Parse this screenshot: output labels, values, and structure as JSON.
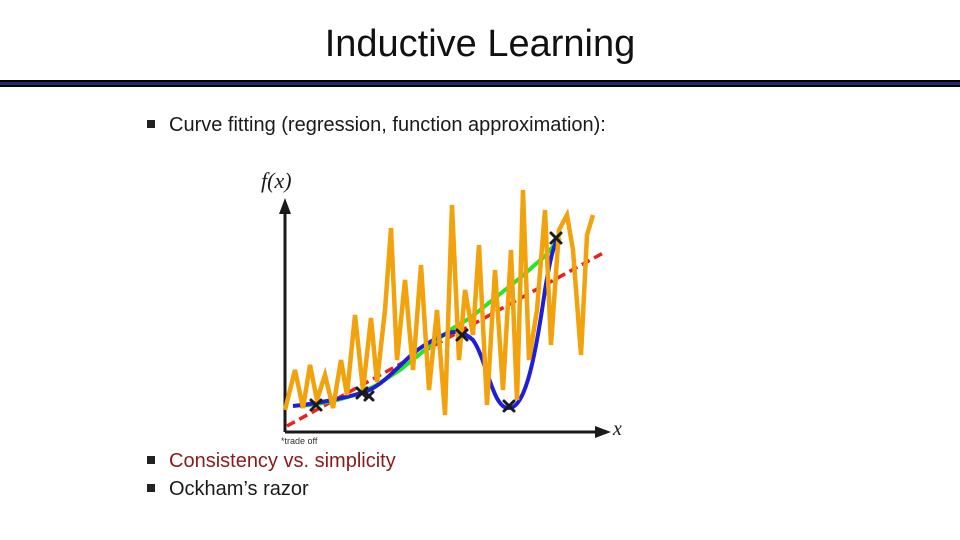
{
  "slide": {
    "title": "Inductive Learning",
    "bullets": [
      {
        "text": "Curve fitting (regression, function approximation):"
      },
      {
        "text": "Consistency vs. simplicity"
      },
      {
        "text": "Ockham’s razor"
      }
    ]
  },
  "figure": {
    "y_axis_label": "f(x)",
    "x_axis_label": "x",
    "note": "*trade off",
    "colors": {
      "axes": "#1a1a1a",
      "linear_fit": "#e8221c",
      "low_degree_fit": "#22e822",
      "cubic_fit": "#1f1fd6",
      "overfit": "#f2a20c",
      "data_points": "#1a1a1a"
    },
    "marker_icon": "x-mark-icon"
  }
}
